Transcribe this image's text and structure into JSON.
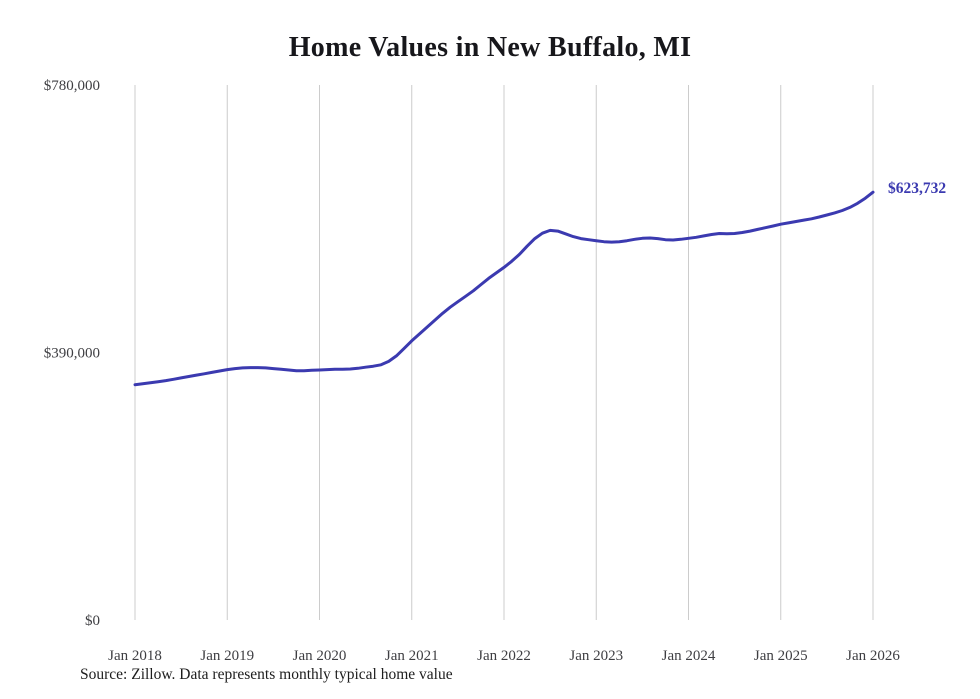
{
  "title": "Home Values in New Buffalo, MI",
  "source_note": "Source: Zillow. Data represents monthly typical home value",
  "end_label": "$623,732",
  "colors": {
    "line": "#3b3ab0",
    "end_label": "#3b3ab0",
    "grid": "#cccccc",
    "title_text": "#17171b",
    "axis_text": "#3e3e42",
    "background": "#ffffff"
  },
  "chart_data": {
    "type": "line",
    "title": "Home Values in New Buffalo, MI",
    "xlabel": "",
    "ylabel": "",
    "x_unit": "month",
    "x_start": "Jan 2018",
    "x_end": "Jan 2026",
    "x_tick_labels": [
      "Jan 2018",
      "Jan 2019",
      "Jan 2020",
      "Jan 2021",
      "Jan 2022",
      "Jan 2023",
      "Jan 2024",
      "Jan 2025",
      "Jan 2026"
    ],
    "y_ticks": [
      {
        "value": 0,
        "label": "$0"
      },
      {
        "value": 390000,
        "label": "$390,000"
      },
      {
        "value": 780000,
        "label": "$780,000"
      }
    ],
    "ylim": [
      0,
      780000
    ],
    "grid": "vertical-only",
    "legend": "none",
    "final_value": 623732,
    "final_value_label": "$623,732",
    "series_name": "Typical home value",
    "values": [
      343000,
      344500,
      346000,
      347500,
      349000,
      351000,
      353000,
      355000,
      357000,
      359000,
      361000,
      363000,
      365000,
      366500,
      367500,
      368000,
      368000,
      367500,
      366500,
      365500,
      364500,
      363500,
      363500,
      364000,
      364500,
      365000,
      365500,
      365500,
      366000,
      367000,
      368500,
      370000,
      372000,
      377000,
      385000,
      396000,
      407000,
      417000,
      427000,
      437000,
      447000,
      456000,
      464000,
      472000,
      480000,
      489000,
      498000,
      506000,
      514000,
      523000,
      533000,
      545000,
      556000,
      564000,
      568000,
      567000,
      563000,
      559000,
      556000,
      554500,
      553000,
      551500,
      551000,
      551500,
      553000,
      555000,
      556500,
      557000,
      556000,
      554500,
      554000,
      555000,
      556500,
      558000,
      560000,
      562000,
      563500,
      563000,
      563500,
      565000,
      567000,
      569500,
      572000,
      574500,
      577000,
      579000,
      581000,
      583000,
      585000,
      587500,
      590500,
      593500,
      597000,
      601500,
      607500,
      615000,
      623732
    ]
  }
}
